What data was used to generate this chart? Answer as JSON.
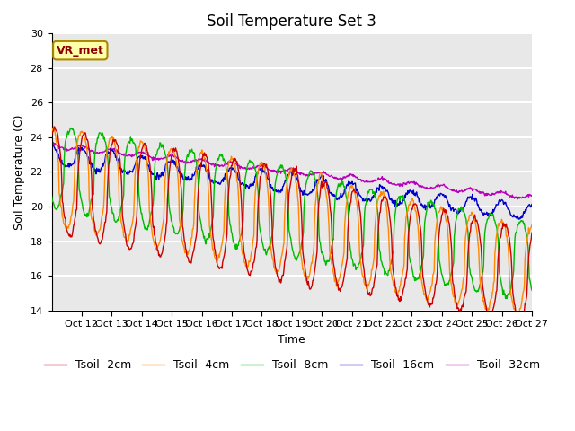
{
  "title": "Soil Temperature Set 3",
  "xlabel": "Time",
  "ylabel": "Soil Temperature (C)",
  "ylim": [
    14,
    30
  ],
  "legend_labels": [
    "Tsoil -2cm",
    "Tsoil -4cm",
    "Tsoil -8cm",
    "Tsoil -16cm",
    "Tsoil -32cm"
  ],
  "line_colors": [
    "#cc0000",
    "#ff8800",
    "#00bb00",
    "#0000cc",
    "#bb00bb"
  ],
  "annotation_text": "VR_met",
  "bg_color": "#e8e8e8",
  "grid_color": "white",
  "title_fontsize": 12,
  "label_fontsize": 9,
  "tick_fontsize": 8,
  "legend_fontsize": 9,
  "xtick_labels": [
    "Oct 12",
    "Oct 13",
    "Oct 14",
    "Oct 15",
    "Oct 16",
    "Oct 17",
    "Oct 18",
    "Oct 19",
    "Oct 20",
    "Oct 21",
    "Oct 22",
    "Oct 23",
    "Oct 24",
    "Oct 25",
    "Oct 26",
    "Oct 27"
  ],
  "figsize": [
    6.4,
    4.8
  ],
  "dpi": 100
}
